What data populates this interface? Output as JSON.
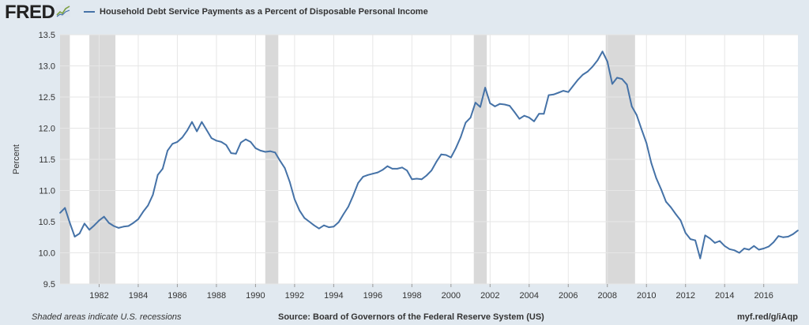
{
  "header": {
    "logo_text": "FRED",
    "logo_icon": "fred-graph-icon"
  },
  "colors": {
    "line": "#4572a7",
    "plot_bg": "#ffffff",
    "page_bg": "#e1e9f0",
    "recession": "#d9d9d9",
    "grid": "#e6e6e6"
  },
  "footer": {
    "note": "Shaded areas indicate U.S. recessions",
    "source": "Source: Board of Governors of the Federal Reserve System (US)",
    "link": "myf.red/g/iAqp"
  },
  "chart_data": {
    "type": "line",
    "title": "",
    "xlabel": "",
    "ylabel": "Percent",
    "ylim": [
      9.5,
      13.5
    ],
    "y_ticks": [
      "9.5",
      "10.0",
      "10.5",
      "11.0",
      "11.5",
      "12.0",
      "12.5",
      "13.0",
      "13.5"
    ],
    "x_ticks": [
      "1982",
      "1984",
      "1986",
      "1988",
      "1990",
      "1992",
      "1994",
      "1996",
      "1998",
      "2000",
      "2002",
      "2004",
      "2006",
      "2008",
      "2010",
      "2012",
      "2014",
      "2016"
    ],
    "xlim": [
      "1980-01-01",
      "2017-10-01"
    ],
    "grid": true,
    "recession_shading": [
      [
        "1980-01-01",
        "1980-07-01"
      ],
      [
        "1981-07-01",
        "1982-11-01"
      ],
      [
        "1990-07-01",
        "1991-03-01"
      ],
      [
        "2001-03-01",
        "2001-11-01"
      ],
      [
        "2007-12-01",
        "2009-06-01"
      ]
    ],
    "series": [
      {
        "name": "Household Debt Service Payments as a Percent of Disposable Personal Income",
        "x": [
          "1980-01-01",
          "1980-04-01",
          "1980-07-01",
          "1980-10-01",
          "1981-01-01",
          "1981-04-01",
          "1981-07-01",
          "1981-10-01",
          "1982-01-01",
          "1982-04-01",
          "1982-07-01",
          "1982-10-01",
          "1983-01-01",
          "1983-04-01",
          "1983-07-01",
          "1983-10-01",
          "1984-01-01",
          "1984-04-01",
          "1984-07-01",
          "1984-10-01",
          "1985-01-01",
          "1985-04-01",
          "1985-07-01",
          "1985-10-01",
          "1986-01-01",
          "1986-04-01",
          "1986-07-01",
          "1986-10-01",
          "1987-01-01",
          "1987-04-01",
          "1987-07-01",
          "1987-10-01",
          "1988-01-01",
          "1988-04-01",
          "1988-07-01",
          "1988-10-01",
          "1989-01-01",
          "1989-04-01",
          "1989-07-01",
          "1989-10-01",
          "1990-01-01",
          "1990-04-01",
          "1990-07-01",
          "1990-10-01",
          "1991-01-01",
          "1991-04-01",
          "1991-07-01",
          "1991-10-01",
          "1992-01-01",
          "1992-04-01",
          "1992-07-01",
          "1992-10-01",
          "1993-01-01",
          "1993-04-01",
          "1993-07-01",
          "1993-10-01",
          "1994-01-01",
          "1994-04-01",
          "1994-07-01",
          "1994-10-01",
          "1995-01-01",
          "1995-04-01",
          "1995-07-01",
          "1995-10-01",
          "1996-01-01",
          "1996-04-01",
          "1996-07-01",
          "1996-10-01",
          "1997-01-01",
          "1997-04-01",
          "1997-07-01",
          "1997-10-01",
          "1998-01-01",
          "1998-04-01",
          "1998-07-01",
          "1998-10-01",
          "1999-01-01",
          "1999-04-01",
          "1999-07-01",
          "1999-10-01",
          "2000-01-01",
          "2000-04-01",
          "2000-07-01",
          "2000-10-01",
          "2001-01-01",
          "2001-04-01",
          "2001-07-01",
          "2001-10-01",
          "2002-01-01",
          "2002-04-01",
          "2002-07-01",
          "2002-10-01",
          "2003-01-01",
          "2003-04-01",
          "2003-07-01",
          "2003-10-01",
          "2004-01-01",
          "2004-04-01",
          "2004-07-01",
          "2004-10-01",
          "2005-01-01",
          "2005-04-01",
          "2005-07-01",
          "2005-10-01",
          "2006-01-01",
          "2006-04-01",
          "2006-07-01",
          "2006-10-01",
          "2007-01-01",
          "2007-04-01",
          "2007-07-01",
          "2007-10-01",
          "2008-01-01",
          "2008-04-01",
          "2008-07-01",
          "2008-10-01",
          "2009-01-01",
          "2009-04-01",
          "2009-07-01",
          "2009-10-01",
          "2010-01-01",
          "2010-04-01",
          "2010-07-01",
          "2010-10-01",
          "2011-01-01",
          "2011-04-01",
          "2011-07-01",
          "2011-10-01",
          "2012-01-01",
          "2012-04-01",
          "2012-07-01",
          "2012-10-01",
          "2013-01-01",
          "2013-04-01",
          "2013-07-01",
          "2013-10-01",
          "2014-01-01",
          "2014-04-01",
          "2014-07-01",
          "2014-10-01",
          "2015-01-01",
          "2015-04-01",
          "2015-07-01",
          "2015-10-01",
          "2016-01-01",
          "2016-04-01",
          "2016-07-01",
          "2016-10-01",
          "2017-01-01",
          "2017-04-01",
          "2017-07-01",
          "2017-10-01"
        ],
        "values": [
          10.64,
          10.72,
          10.48,
          10.26,
          10.31,
          10.47,
          10.37,
          10.44,
          10.52,
          10.58,
          10.48,
          10.43,
          10.4,
          10.42,
          10.43,
          10.48,
          10.54,
          10.66,
          10.76,
          10.93,
          11.25,
          11.35,
          11.64,
          11.75,
          11.78,
          11.85,
          11.96,
          12.1,
          11.95,
          12.1,
          11.97,
          11.84,
          11.8,
          11.78,
          11.73,
          11.6,
          11.59,
          11.77,
          11.82,
          11.78,
          11.68,
          11.64,
          11.62,
          11.63,
          11.61,
          11.48,
          11.36,
          11.14,
          10.86,
          10.68,
          10.56,
          10.5,
          10.44,
          10.39,
          10.44,
          10.41,
          10.42,
          10.49,
          10.62,
          10.74,
          10.92,
          11.12,
          11.22,
          11.25,
          11.27,
          11.29,
          11.33,
          11.39,
          11.35,
          11.35,
          11.37,
          11.32,
          11.18,
          11.19,
          11.18,
          11.24,
          11.32,
          11.46,
          11.58,
          11.57,
          11.53,
          11.68,
          11.86,
          12.09,
          12.17,
          12.41,
          12.34,
          12.65,
          12.4,
          12.35,
          12.39,
          12.38,
          12.36,
          12.26,
          12.15,
          12.2,
          12.17,
          12.11,
          12.23,
          12.23,
          12.53,
          12.54,
          12.57,
          12.6,
          12.58,
          12.68,
          12.78,
          12.86,
          12.91,
          12.99,
          13.09,
          13.23,
          13.07,
          12.71,
          12.81,
          12.79,
          12.7,
          12.35,
          12.21,
          11.98,
          11.76,
          11.44,
          11.2,
          11.02,
          10.82,
          10.73,
          10.62,
          10.52,
          10.32,
          10.22,
          10.2,
          9.91,
          10.28,
          10.23,
          10.16,
          10.19,
          10.11,
          10.06,
          10.04,
          10.0,
          10.07,
          10.05,
          10.11,
          10.05,
          10.07,
          10.1,
          10.17,
          10.27,
          10.25,
          10.26,
          10.3,
          10.36
        ]
      }
    ]
  }
}
